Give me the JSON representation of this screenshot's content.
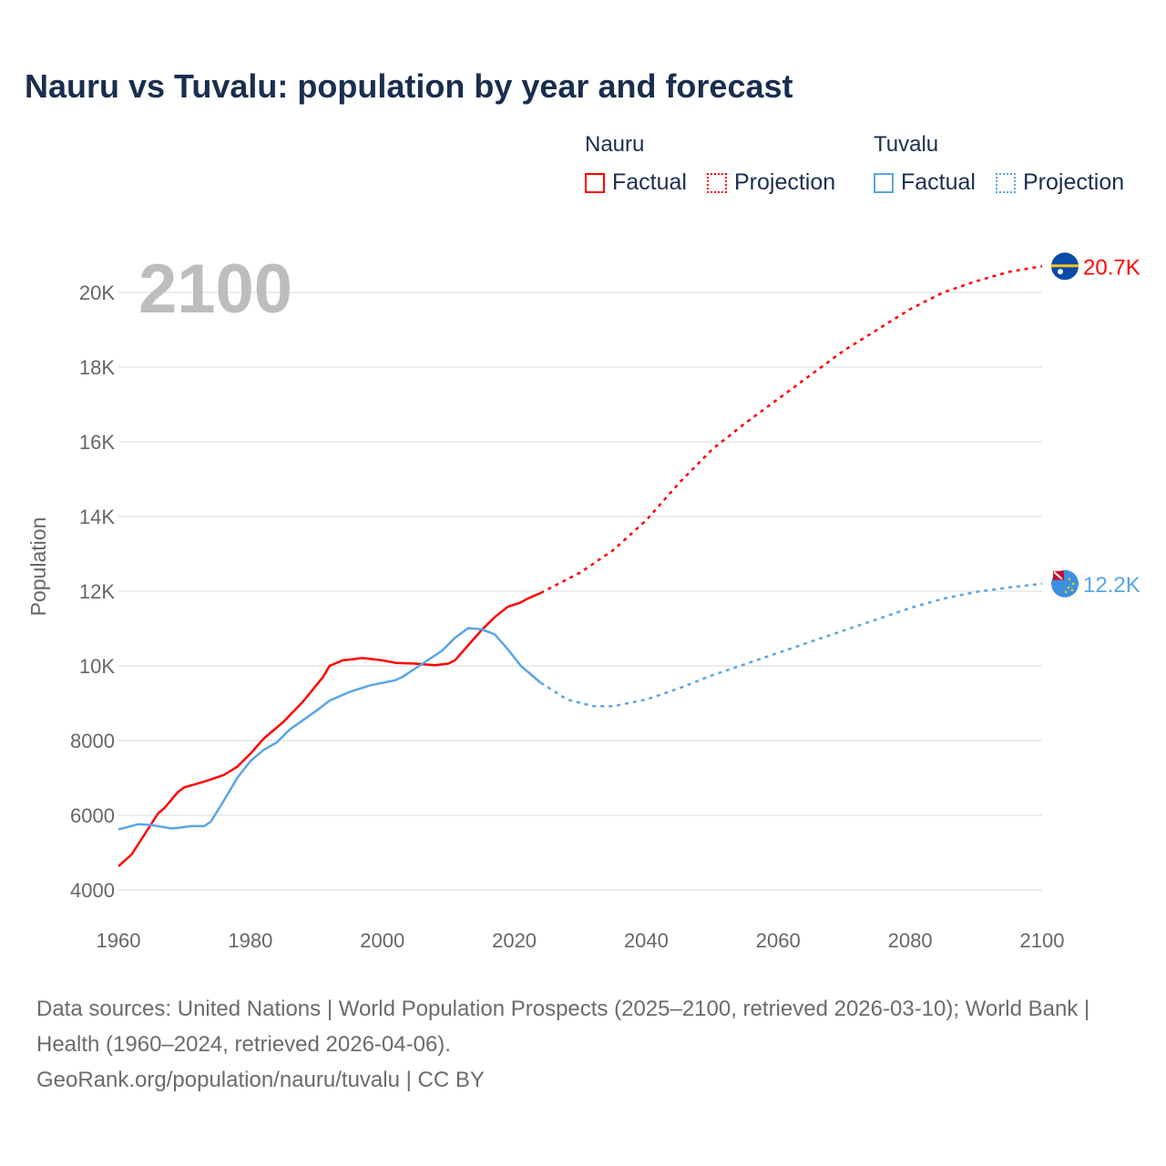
{
  "title": "Nauru vs Tuvalu: population by year and forecast",
  "legend": {
    "groups": [
      {
        "name": "Nauru",
        "color": "#ff0000",
        "items": [
          "Factual",
          "Projection"
        ]
      },
      {
        "name": "Tuvalu",
        "color": "#5aa5e6",
        "items": [
          "Factual",
          "Projection"
        ]
      }
    ]
  },
  "year_label": "2100",
  "footer": {
    "sources": "Data sources: United Nations | World Population Prospects (2025–2100, retrieved 2026-03-10); World Bank | Health (1960–2024, retrieved 2026-04-06).",
    "credit": "GeoRank.org/population/nauru/tuvalu | CC BY"
  },
  "chart_data": {
    "type": "line",
    "title": "Nauru vs Tuvalu: population by year and forecast",
    "xlabel": "",
    "ylabel": "Population",
    "xlim": [
      1960,
      2100
    ],
    "ylim": [
      4000,
      20000
    ],
    "xticks": [
      {
        "v": 1960,
        "l": "1960"
      },
      {
        "v": 1980,
        "l": "1980"
      },
      {
        "v": 2000,
        "l": "2000"
      },
      {
        "v": 2020,
        "l": "2020"
      },
      {
        "v": 2040,
        "l": "2040"
      },
      {
        "v": 2060,
        "l": "2060"
      },
      {
        "v": 2080,
        "l": "2080"
      },
      {
        "v": 2100,
        "l": "2100"
      }
    ],
    "yticks": [
      {
        "v": 4000,
        "l": "4000"
      },
      {
        "v": 6000,
        "l": "6000"
      },
      {
        "v": 8000,
        "l": "8000"
      },
      {
        "v": 10000,
        "l": "10K"
      },
      {
        "v": 12000,
        "l": "12K"
      },
      {
        "v": 14000,
        "l": "14K"
      },
      {
        "v": 16000,
        "l": "16K"
      },
      {
        "v": 18000,
        "l": "18K"
      },
      {
        "v": 20000,
        "l": "20K"
      }
    ],
    "grid": true,
    "series": [
      {
        "name": "Nauru",
        "color": "#ff0000",
        "end_label": "20.7K",
        "factual": [
          [
            1960,
            4634
          ],
          [
            1962,
            4950
          ],
          [
            1964,
            5500
          ],
          [
            1966,
            6050
          ],
          [
            1967,
            6200
          ],
          [
            1969,
            6620
          ],
          [
            1970,
            6750
          ],
          [
            1973,
            6900
          ],
          [
            1976,
            7080
          ],
          [
            1978,
            7300
          ],
          [
            1980,
            7650
          ],
          [
            1982,
            8050
          ],
          [
            1985,
            8500
          ],
          [
            1988,
            9050
          ],
          [
            1991,
            9700
          ],
          [
            1992,
            10000
          ],
          [
            1994,
            10150
          ],
          [
            1997,
            10210
          ],
          [
            2000,
            10150
          ],
          [
            2002,
            10080
          ],
          [
            2005,
            10060
          ],
          [
            2008,
            10020
          ],
          [
            2010,
            10060
          ],
          [
            2011,
            10150
          ],
          [
            2013,
            10550
          ],
          [
            2015,
            10950
          ],
          [
            2017,
            11300
          ],
          [
            2019,
            11580
          ],
          [
            2021,
            11700
          ],
          [
            2022,
            11800
          ],
          [
            2024,
            11950
          ]
        ],
        "projection": [
          [
            2024,
            11950
          ],
          [
            2030,
            12500
          ],
          [
            2035,
            13100
          ],
          [
            2040,
            13900
          ],
          [
            2045,
            14900
          ],
          [
            2050,
            15800
          ],
          [
            2055,
            16500
          ],
          [
            2060,
            17150
          ],
          [
            2065,
            17800
          ],
          [
            2070,
            18450
          ],
          [
            2075,
            19000
          ],
          [
            2080,
            19550
          ],
          [
            2085,
            20000
          ],
          [
            2090,
            20300
          ],
          [
            2095,
            20550
          ],
          [
            2100,
            20700
          ]
        ]
      },
      {
        "name": "Tuvalu",
        "color": "#5aa5e6",
        "end_label": "12.2K",
        "factual": [
          [
            1960,
            5620
          ],
          [
            1963,
            5760
          ],
          [
            1965,
            5740
          ],
          [
            1968,
            5650
          ],
          [
            1969,
            5660
          ],
          [
            1971,
            5710
          ],
          [
            1973,
            5710
          ],
          [
            1974,
            5830
          ],
          [
            1976,
            6400
          ],
          [
            1978,
            7000
          ],
          [
            1980,
            7450
          ],
          [
            1982,
            7750
          ],
          [
            1984,
            7950
          ],
          [
            1986,
            8300
          ],
          [
            1990,
            8800
          ],
          [
            1992,
            9070
          ],
          [
            1995,
            9300
          ],
          [
            1998,
            9470
          ],
          [
            2002,
            9620
          ],
          [
            2003,
            9700
          ],
          [
            2006,
            10050
          ],
          [
            2009,
            10400
          ],
          [
            2011,
            10750
          ],
          [
            2013,
            11010
          ],
          [
            2015,
            10980
          ],
          [
            2017,
            10850
          ],
          [
            2019,
            10450
          ],
          [
            2021,
            10000
          ],
          [
            2024,
            9550
          ]
        ],
        "projection": [
          [
            2024,
            9550
          ],
          [
            2028,
            9100
          ],
          [
            2032,
            8920
          ],
          [
            2035,
            8920
          ],
          [
            2040,
            9100
          ],
          [
            2045,
            9400
          ],
          [
            2050,
            9750
          ],
          [
            2055,
            10050
          ],
          [
            2060,
            10350
          ],
          [
            2065,
            10650
          ],
          [
            2070,
            10950
          ],
          [
            2075,
            11250
          ],
          [
            2080,
            11550
          ],
          [
            2085,
            11800
          ],
          [
            2090,
            11980
          ],
          [
            2095,
            12100
          ],
          [
            2100,
            12200
          ]
        ]
      }
    ]
  }
}
